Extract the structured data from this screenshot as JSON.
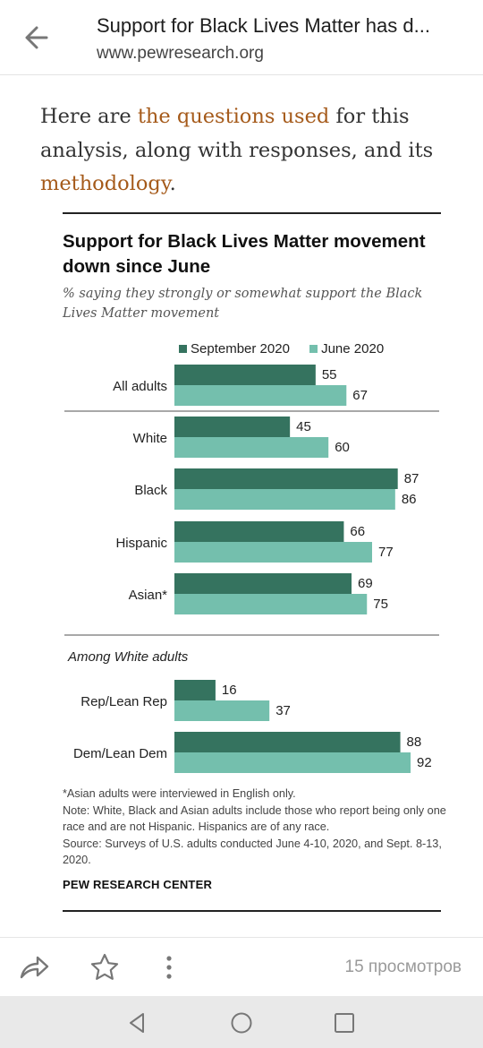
{
  "topbar": {
    "title": "Support for Black Lives Matter has d...",
    "url": "www.pewresearch.org"
  },
  "intro": {
    "text_1": "Here are ",
    "link_1": "the questions used",
    "text_2": " for this analysis, along with responses, and its ",
    "link_2": "methodology",
    "text_3": "."
  },
  "chart_title": "Support for Black Lives Matter movement down since June",
  "chart_subtitle": "% saying they strongly or somewhat support the Black Lives Matter movement",
  "colors": {
    "september": "#35735f",
    "june": "#74bfad",
    "link": "#a55a1a"
  },
  "chart_data": {
    "type": "bar",
    "orientation": "horizontal",
    "categories": [
      "All adults",
      "White",
      "Black",
      "Hispanic",
      "Asian*",
      "Rep/Lean Rep",
      "Dem/Lean Dem"
    ],
    "series": [
      {
        "name": "September 2020",
        "values": [
          55,
          45,
          87,
          66,
          69,
          16,
          88
        ]
      },
      {
        "name": "June 2020",
        "values": [
          67,
          60,
          86,
          77,
          75,
          37,
          92
        ]
      }
    ],
    "group_heading": "Among White adults",
    "legend_position": "top",
    "grid": false,
    "xlim": [
      0,
      100
    ]
  },
  "footnotes": {
    "asian": "*Asian adults were interviewed in English only.",
    "note": "Note: White, Black and Asian adults include those who report being only one race and are not Hispanic. Hispanics are of any race.",
    "source": "Source: Surveys of U.S. adults conducted June 4-10, 2020, and Sept. 8-13, 2020.",
    "org": "PEW RESEARCH CENTER"
  },
  "actionbar": {
    "icons": [
      "share-icon",
      "star-icon",
      "more-vertical-icon"
    ],
    "views": "15 просмотров"
  },
  "navbar": {
    "icons": [
      "nav-back-icon",
      "nav-home-icon",
      "nav-recents-icon"
    ]
  }
}
